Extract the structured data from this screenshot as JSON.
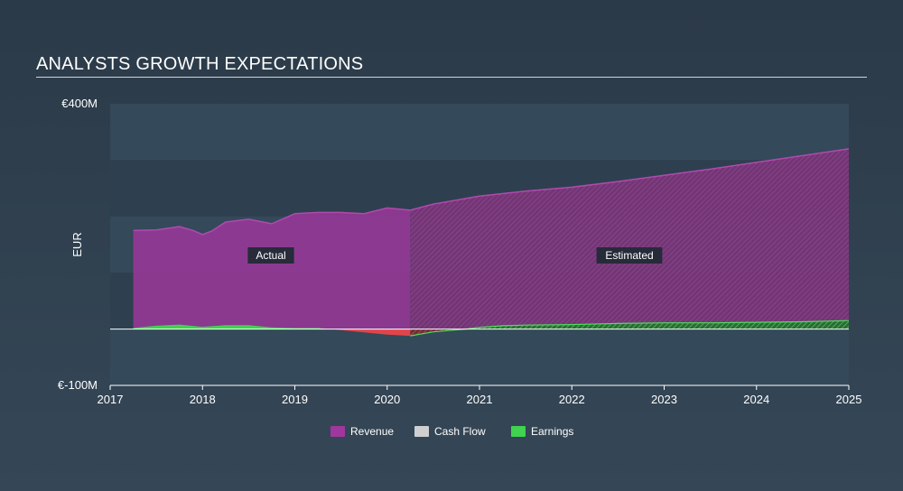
{
  "title": "ANALYSTS GROWTH EXPECTATIONS",
  "chart_data": {
    "type": "area",
    "title": "ANALYSTS GROWTH EXPECTATIONS",
    "ylabel": "EUR",
    "ylim": [
      -100,
      400
    ],
    "y_tick_labels": [
      "€400M",
      "€-100M"
    ],
    "xlim": [
      2017,
      2025
    ],
    "x_ticks": [
      2017,
      2018,
      2019,
      2020,
      2021,
      2022,
      2023,
      2024,
      2025
    ],
    "x_tick_labels": [
      "2017",
      "2018",
      "2019",
      "2020",
      "2021",
      "2022",
      "2023",
      "2024",
      "2025"
    ],
    "actual_end": 2020.25,
    "annotations": {
      "actual": "Actual",
      "estimated": "Estimated"
    },
    "series": [
      {
        "name": "Revenue",
        "color": "#a0379e",
        "x": [
          2017.25,
          2017.5,
          2017.75,
          2017.9,
          2018.0,
          2018.1,
          2018.25,
          2018.5,
          2018.75,
          2019.0,
          2019.25,
          2019.5,
          2019.75,
          2020.0,
          2020.25,
          2020.5,
          2021.0,
          2021.5,
          2022.0,
          2022.5,
          2023.0,
          2023.5,
          2024.0,
          2024.5,
          2025.0
        ],
        "values": [
          175,
          176,
          182,
          175,
          168,
          174,
          190,
          195,
          187,
          205,
          207,
          207,
          205,
          215,
          211,
          222,
          236,
          245,
          252,
          262,
          273,
          284,
          296,
          308,
          320
        ]
      },
      {
        "name": "Cash Flow",
        "color": "#d0d0d0",
        "x": [],
        "values": []
      },
      {
        "name": "Earnings",
        "color": "#3fd34f",
        "x": [
          2017.25,
          2017.5,
          2017.75,
          2018.0,
          2018.25,
          2018.5,
          2018.75,
          2019.0,
          2019.25,
          2019.5,
          2019.75,
          2020.0,
          2020.25,
          2020.5,
          2020.85,
          2021.0,
          2021.25,
          2021.5,
          2022.0,
          2022.5,
          2023.0,
          2023.5,
          2024.0,
          2024.5,
          2025.0
        ],
        "values": [
          2,
          6,
          8,
          4,
          7,
          7,
          3,
          2,
          2,
          -2,
          -6,
          -10,
          -12,
          -5,
          0,
          3,
          6,
          7,
          8,
          10,
          11,
          11,
          12,
          13,
          15
        ]
      }
    ],
    "legend": [
      "Revenue",
      "Cash Flow",
      "Earnings"
    ],
    "negative_color": "#e0454a"
  }
}
